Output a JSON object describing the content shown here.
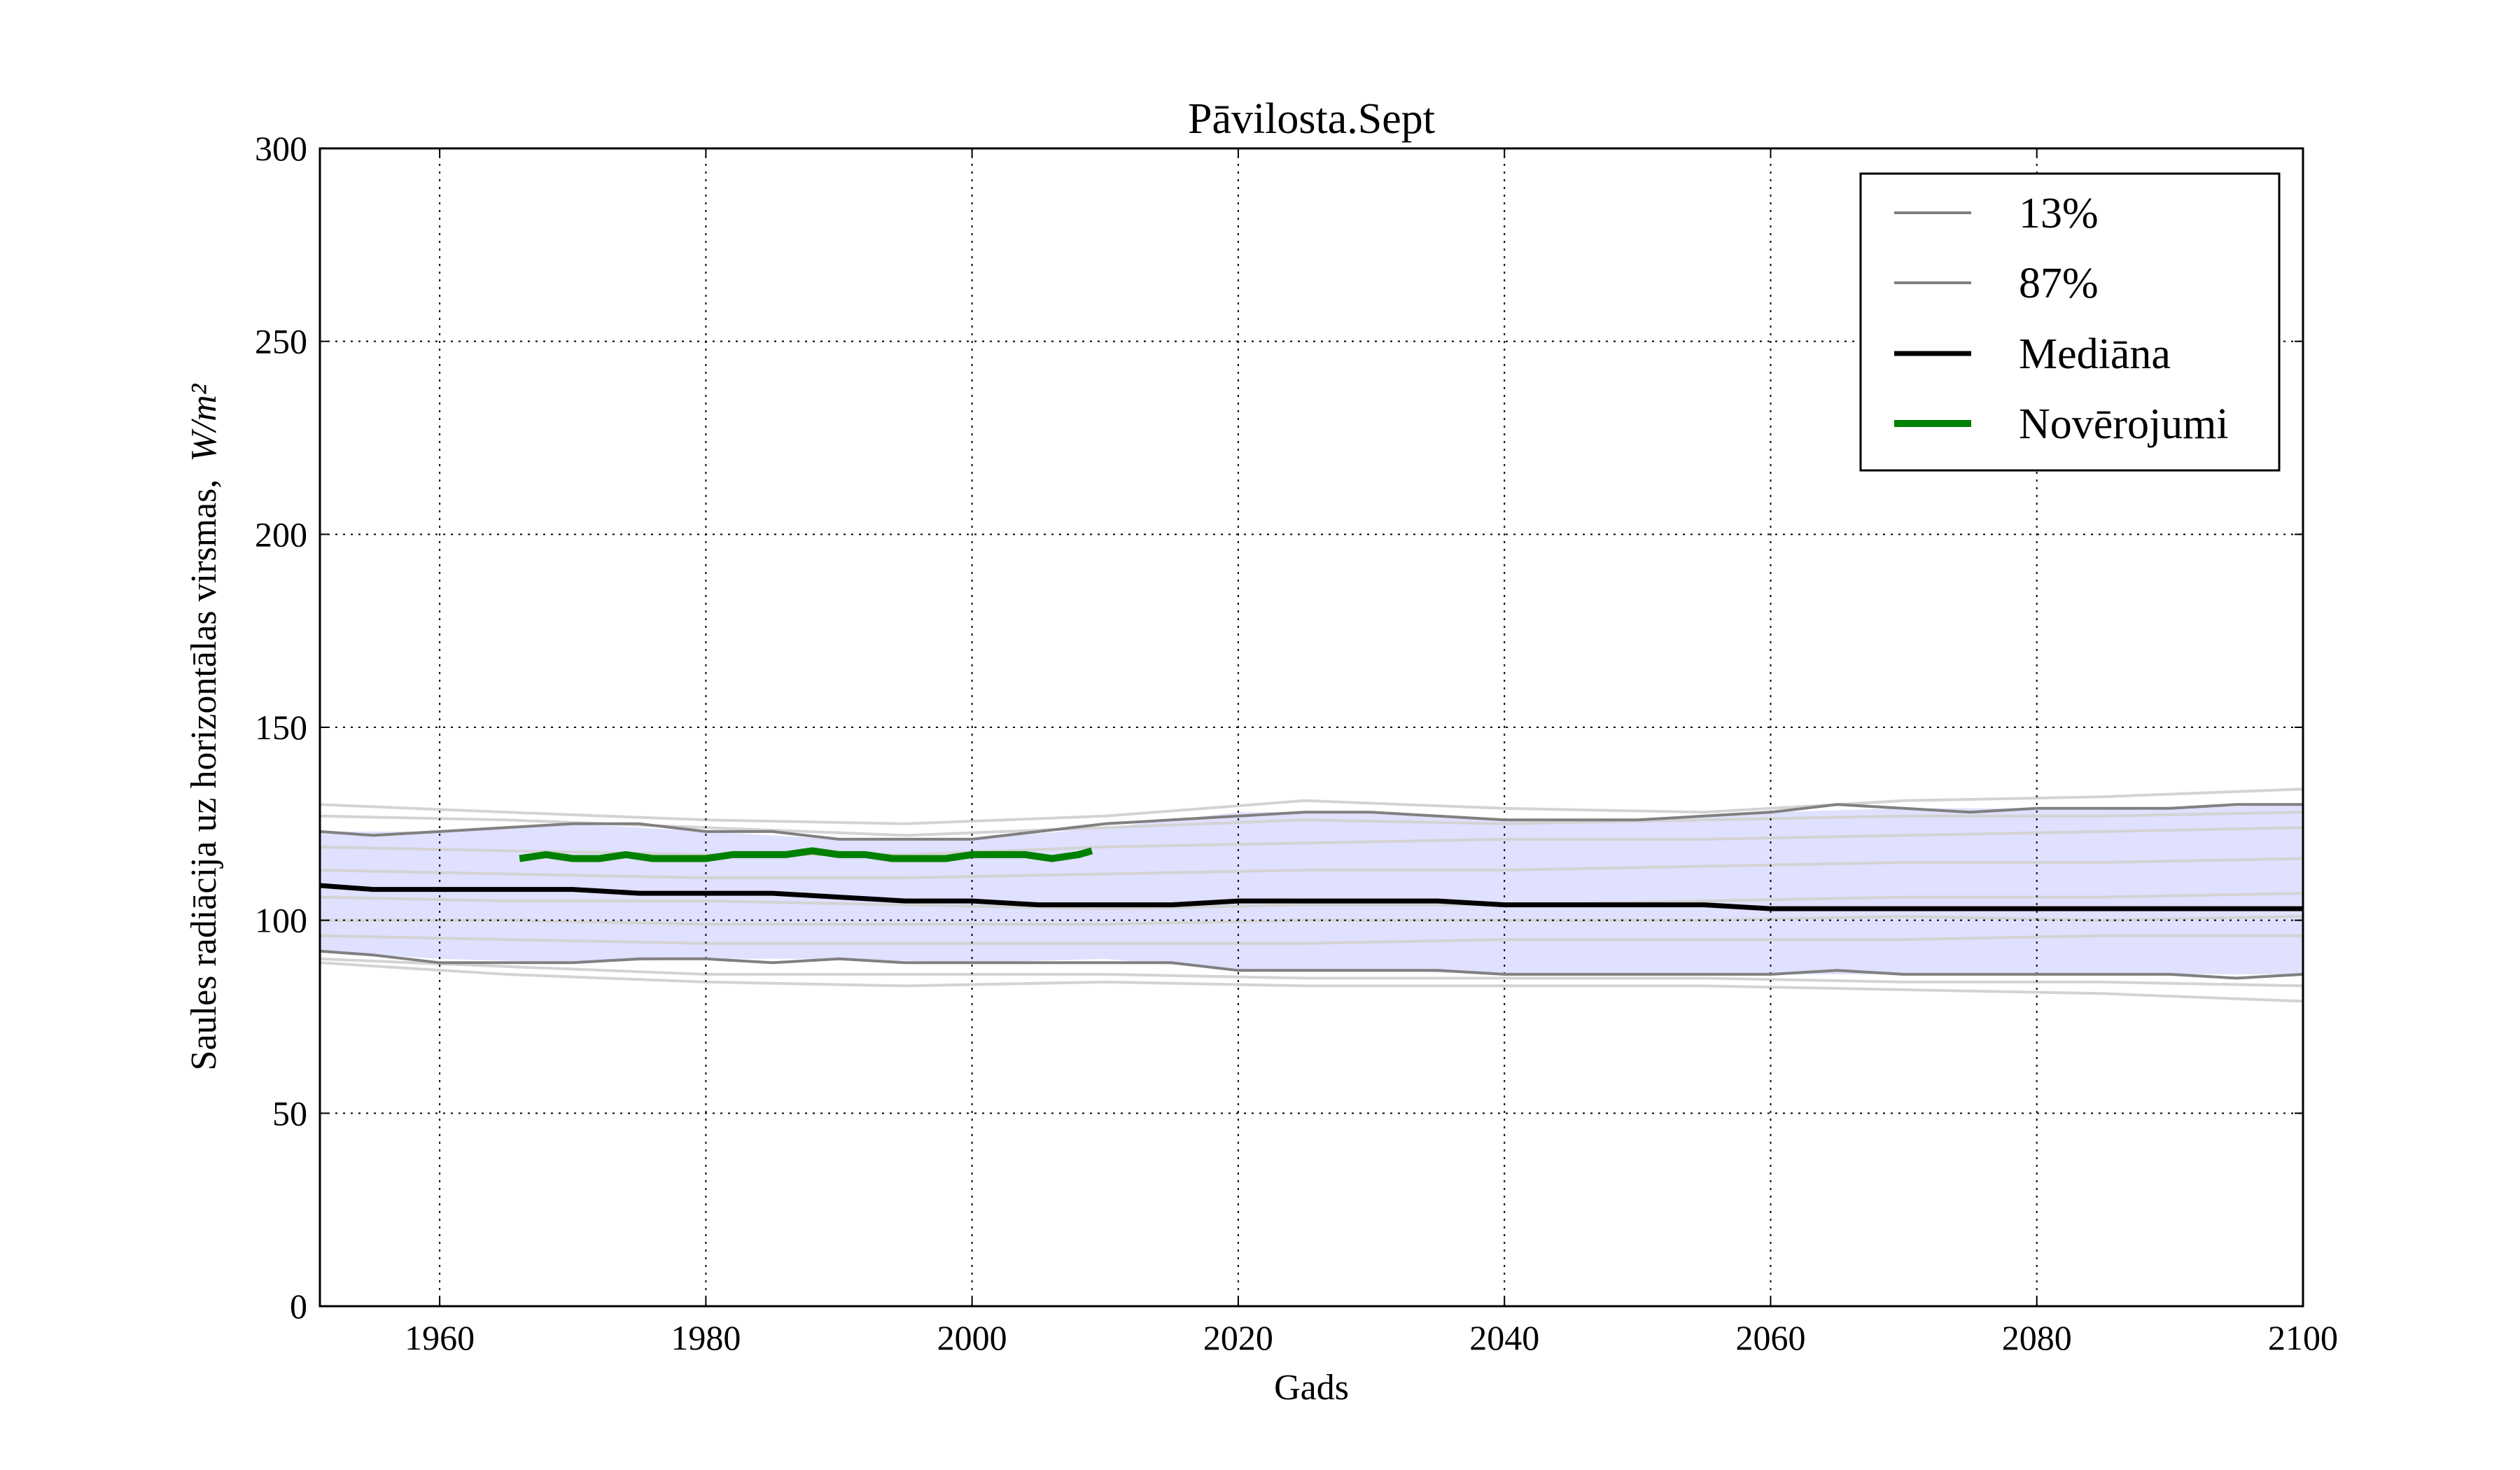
{
  "chart_data": {
    "type": "line",
    "title": "Pāvilosta.Sept",
    "xlabel": "Gads",
    "ylabel": "Saules radiācija uz horizontālas virsmas,",
    "ylabel_unit": "W/m²",
    "xlim": [
      1951,
      2100
    ],
    "ylim": [
      0,
      300
    ],
    "xticks": [
      1960,
      1980,
      2000,
      2020,
      2040,
      2060,
      2080,
      2100
    ],
    "yticks": [
      0,
      50,
      100,
      150,
      200,
      250,
      300
    ],
    "grid": true,
    "legend_position": "top-right",
    "band": {
      "color": "#e0e0ff",
      "x": [
        1951,
        1960,
        1970,
        1980,
        1990,
        2000,
        2010,
        2020,
        2030,
        2040,
        2050,
        2060,
        2070,
        2080,
        2090,
        2100
      ],
      "lower": [
        92,
        90,
        89,
        90,
        90,
        89,
        90,
        87,
        87,
        86,
        86,
        86,
        86,
        86,
        86,
        86
      ],
      "upper": [
        123,
        123,
        125,
        123,
        121,
        121,
        124,
        128,
        128,
        126,
        126,
        128,
        129,
        129,
        129,
        130
      ]
    },
    "series": [
      {
        "name": "13%",
        "color": "#808080",
        "x": [
          1951,
          1955,
          1960,
          1965,
          1970,
          1975,
          1980,
          1985,
          1990,
          1995,
          2000,
          2005,
          2010,
          2015,
          2020,
          2025,
          2030,
          2035,
          2040,
          2045,
          2050,
          2055,
          2060,
          2065,
          2070,
          2075,
          2080,
          2085,
          2090,
          2095,
          2100
        ],
        "values": [
          92,
          91,
          89,
          89,
          89,
          90,
          90,
          89,
          90,
          89,
          89,
          89,
          89,
          89,
          87,
          87,
          87,
          87,
          86,
          86,
          86,
          86,
          86,
          87,
          86,
          86,
          86,
          86,
          86,
          85,
          86
        ]
      },
      {
        "name": "87%",
        "color": "#808080",
        "x": [
          1951,
          1955,
          1960,
          1965,
          1970,
          1975,
          1980,
          1985,
          1990,
          1995,
          2000,
          2005,
          2010,
          2015,
          2020,
          2025,
          2030,
          2035,
          2040,
          2045,
          2050,
          2055,
          2060,
          2065,
          2070,
          2075,
          2080,
          2085,
          2090,
          2095,
          2100
        ],
        "values": [
          123,
          122,
          123,
          124,
          125,
          125,
          123,
          123,
          121,
          121,
          121,
          123,
          125,
          126,
          127,
          128,
          128,
          127,
          126,
          126,
          126,
          127,
          128,
          130,
          129,
          128,
          129,
          129,
          129,
          130,
          130
        ]
      },
      {
        "name": "Mediāna",
        "color": "#000000",
        "x": [
          1951,
          1955,
          1960,
          1965,
          1970,
          1975,
          1980,
          1985,
          1990,
          1995,
          2000,
          2005,
          2010,
          2015,
          2020,
          2025,
          2030,
          2035,
          2040,
          2045,
          2050,
          2055,
          2060,
          2065,
          2070,
          2075,
          2080,
          2085,
          2090,
          2095,
          2100
        ],
        "values": [
          109,
          108,
          108,
          108,
          108,
          107,
          107,
          107,
          106,
          105,
          105,
          104,
          104,
          104,
          105,
          105,
          105,
          105,
          104,
          104,
          104,
          104,
          103,
          103,
          103,
          103,
          103,
          103,
          103,
          103,
          103
        ]
      },
      {
        "name": "Novērojumi",
        "color": "#008000",
        "x": [
          1966,
          1968,
          1970,
          1972,
          1974,
          1976,
          1978,
          1980,
          1982,
          1984,
          1986,
          1988,
          1990,
          1992,
          1994,
          1996,
          1998,
          2000,
          2002,
          2004,
          2006,
          2008,
          2009
        ],
        "values": [
          116,
          117,
          116,
          116,
          117,
          116,
          116,
          116,
          117,
          117,
          117,
          118,
          117,
          117,
          116,
          116,
          116,
          117,
          117,
          117,
          116,
          117,
          118
        ]
      }
    ],
    "ensemble": {
      "color": "#d3d3d3",
      "x": [
        1951,
        1965,
        1980,
        1995,
        2010,
        2025,
        2040,
        2055,
        2070,
        2085,
        2100
      ],
      "members": [
        [
          130,
          128,
          126,
          125,
          127,
          131,
          129,
          128,
          131,
          132,
          134
        ],
        [
          127,
          126,
          124,
          122,
          124,
          126,
          125,
          126,
          127,
          127,
          128
        ],
        [
          119,
          118,
          117,
          117,
          119,
          120,
          121,
          121,
          122,
          123,
          124
        ],
        [
          113,
          112,
          111,
          111,
          112,
          113,
          113,
          114,
          115,
          115,
          116
        ],
        [
          106,
          105,
          105,
          104,
          103,
          104,
          104,
          105,
          106,
          106,
          107
        ],
        [
          100,
          100,
          99,
          99,
          99,
          100,
          100,
          100,
          101,
          100,
          101
        ],
        [
          96,
          95,
          94,
          94,
          94,
          94,
          95,
          95,
          95,
          96,
          96
        ],
        [
          90,
          88,
          86,
          86,
          86,
          85,
          85,
          85,
          84,
          84,
          83
        ],
        [
          89,
          86,
          84,
          83,
          84,
          83,
          83,
          83,
          82,
          81,
          79
        ]
      ]
    }
  }
}
